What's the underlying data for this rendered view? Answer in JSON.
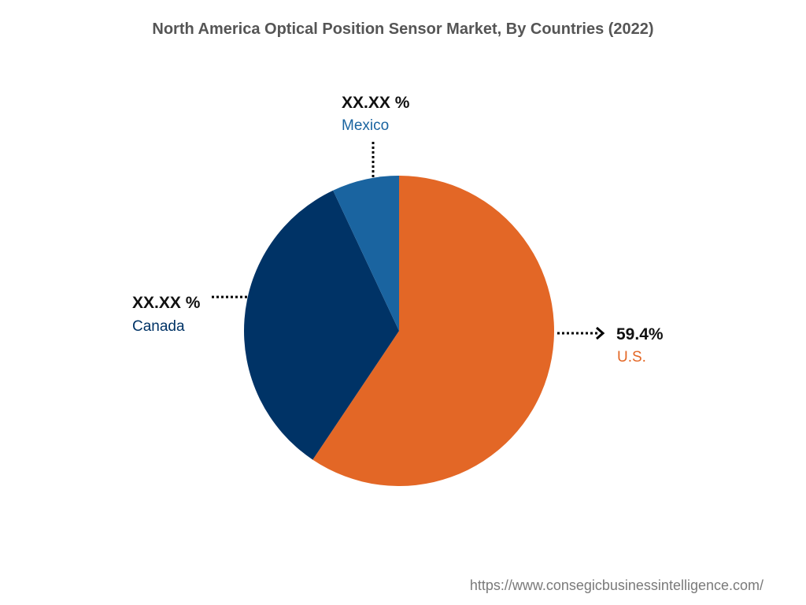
{
  "chart_data": {
    "type": "pie",
    "title": "North America Optical Position Sensor Market, By Countries (2022)",
    "slices": [
      {
        "label": "U.S.",
        "value_text": "59.4%",
        "value": 59.4,
        "color": "#e36726"
      },
      {
        "label": "Canada",
        "value_text": "XX.XX %",
        "value": 33.6,
        "color": "#003366"
      },
      {
        "label": "Mexico",
        "value_text": "XX.XX %",
        "value": 7.0,
        "color": "#1a64a0"
      }
    ],
    "start_angle_deg": 0,
    "direction": "clockwise"
  },
  "footer": {
    "source_url": "https://www.consegicbusinessintelligence.com/"
  }
}
